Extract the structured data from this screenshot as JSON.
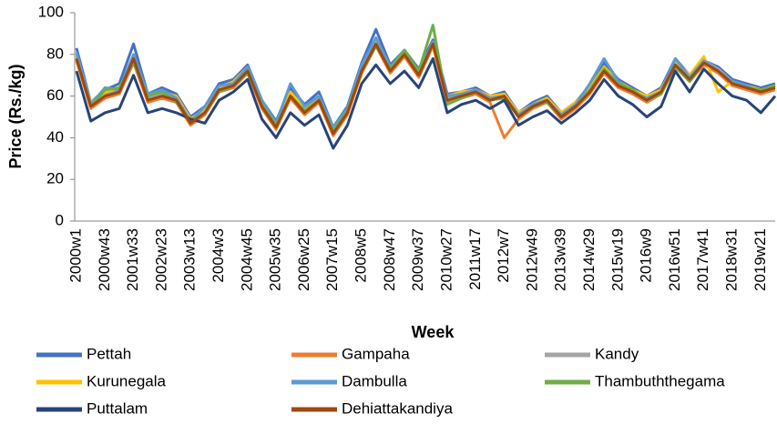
{
  "chart_data": {
    "type": "line",
    "xlabel": "Week",
    "ylabel": "Price (Rs./kg)",
    "ylim": [
      0,
      100
    ],
    "yticks": [
      0,
      20,
      40,
      60,
      80,
      100
    ],
    "categories": [
      "2000w1",
      null,
      "2000w43",
      null,
      "2001w33",
      null,
      "2002w23",
      null,
      "2003w13",
      null,
      "2004w3",
      null,
      "2004w45",
      null,
      "2005w35",
      null,
      "2006w25",
      null,
      "2007w15",
      null,
      "2008w5",
      null,
      "2008w47",
      null,
      "2009w37",
      null,
      "2010w27",
      null,
      "2011w17",
      null,
      "2012w7",
      null,
      "2012w49",
      null,
      "2013w39",
      null,
      "2014w29",
      null,
      "2015w19",
      null,
      "2016w9",
      null,
      "2016w51",
      null,
      "2017w41",
      null,
      "2018w31",
      null,
      "2019w21",
      null
    ],
    "series": [
      {
        "name": "Pettah",
        "color": "#4472c4",
        "values": [
          83,
          57,
          63,
          66,
          85,
          61,
          64,
          61,
          50,
          55,
          66,
          68,
          75,
          58,
          48,
          64,
          56,
          62,
          45,
          55,
          76,
          92,
          75,
          82,
          73,
          87,
          61,
          62,
          64,
          60,
          62,
          52,
          57,
          60,
          52,
          57,
          65,
          76,
          68,
          64,
          60,
          64,
          78,
          70,
          77,
          74,
          68,
          66,
          64,
          66
        ]
      },
      {
        "name": "Gampaha",
        "color": "#ed7d31",
        "values": [
          77,
          54,
          59,
          61,
          76,
          57,
          59,
          57,
          46,
          51,
          62,
          64,
          71,
          54,
          44,
          59,
          51,
          57,
          41,
          51,
          71,
          84,
          71,
          79,
          69,
          84,
          57,
          59,
          61,
          57,
          40,
          49,
          54,
          57,
          49,
          54,
          61,
          71,
          64,
          61,
          57,
          61,
          74,
          67,
          75,
          71,
          65,
          63,
          61,
          63
        ]
      },
      {
        "name": "Kandy",
        "color": "#a5a5a5",
        "values": [
          79,
          56,
          61,
          63,
          79,
          59,
          61,
          59,
          48,
          53,
          64,
          66,
          73,
          56,
          46,
          61,
          53,
          59,
          43,
          53,
          73,
          86,
          73,
          81,
          71,
          86,
          59,
          61,
          63,
          59,
          61,
          51,
          56,
          59,
          51,
          56,
          63,
          73,
          66,
          63,
          59,
          63,
          76,
          69,
          77,
          73,
          67,
          65,
          63,
          65
        ]
      },
      {
        "name": "Kurunegala",
        "color": "#ffc000",
        "values": [
          80,
          57,
          62,
          64,
          77,
          60,
          62,
          60,
          49,
          54,
          64,
          67,
          74,
          57,
          47,
          62,
          54,
          60,
          44,
          54,
          74,
          86,
          74,
          81,
          72,
          84,
          60,
          62,
          63,
          60,
          61,
          52,
          56,
          59,
          52,
          57,
          64,
          74,
          67,
          63,
          60,
          63,
          77,
          70,
          79,
          62,
          67,
          65,
          63,
          65
        ]
      },
      {
        "name": "Dambulla",
        "color": "#5b9bd5",
        "values": [
          81,
          56,
          64,
          63,
          80,
          61,
          63,
          59,
          48,
          55,
          65,
          66,
          74,
          58,
          47,
          66,
          55,
          60,
          45,
          54,
          75,
          88,
          74,
          82,
          71,
          86,
          60,
          61,
          63,
          59,
          60,
          51,
          56,
          58,
          51,
          56,
          66,
          78,
          67,
          62,
          59,
          62,
          78,
          69,
          77,
          72,
          67,
          65,
          62,
          65
        ]
      },
      {
        "name": "Thambuththegama",
        "color": "#70ad47",
        "values": [
          78,
          55,
          63,
          64,
          76,
          60,
          62,
          57,
          48,
          52,
          62,
          65,
          71,
          56,
          46,
          60,
          53,
          58,
          43,
          53,
          72,
          84,
          73,
          82,
          72,
          94,
          56,
          59,
          62,
          58,
          59,
          50,
          55,
          57,
          50,
          55,
          63,
          73,
          66,
          63,
          58,
          61,
          74,
          67,
          76,
          72,
          66,
          64,
          63,
          65
        ]
      },
      {
        "name": "Puttalam",
        "color": "#264478",
        "values": [
          72,
          48,
          52,
          54,
          70,
          52,
          54,
          52,
          49,
          47,
          58,
          62,
          68,
          49,
          40,
          52,
          46,
          51,
          35,
          46,
          66,
          75,
          66,
          72,
          64,
          78,
          52,
          56,
          58,
          54,
          58,
          46,
          50,
          53,
          47,
          52,
          58,
          68,
          60,
          56,
          50,
          55,
          72,
          62,
          73,
          66,
          60,
          58,
          52,
          60
        ]
      },
      {
        "name": "Dehiattakandiya",
        "color": "#9e480e",
        "values": [
          78,
          55,
          60,
          62,
          78,
          58,
          60,
          58,
          47,
          52,
          63,
          65,
          72,
          55,
          45,
          60,
          52,
          58,
          42,
          52,
          72,
          85,
          72,
          80,
          70,
          85,
          58,
          60,
          62,
          58,
          60,
          50,
          55,
          58,
          50,
          55,
          62,
          72,
          65,
          62,
          58,
          62,
          75,
          68,
          76,
          72,
          66,
          64,
          62,
          64
        ]
      }
    ]
  }
}
